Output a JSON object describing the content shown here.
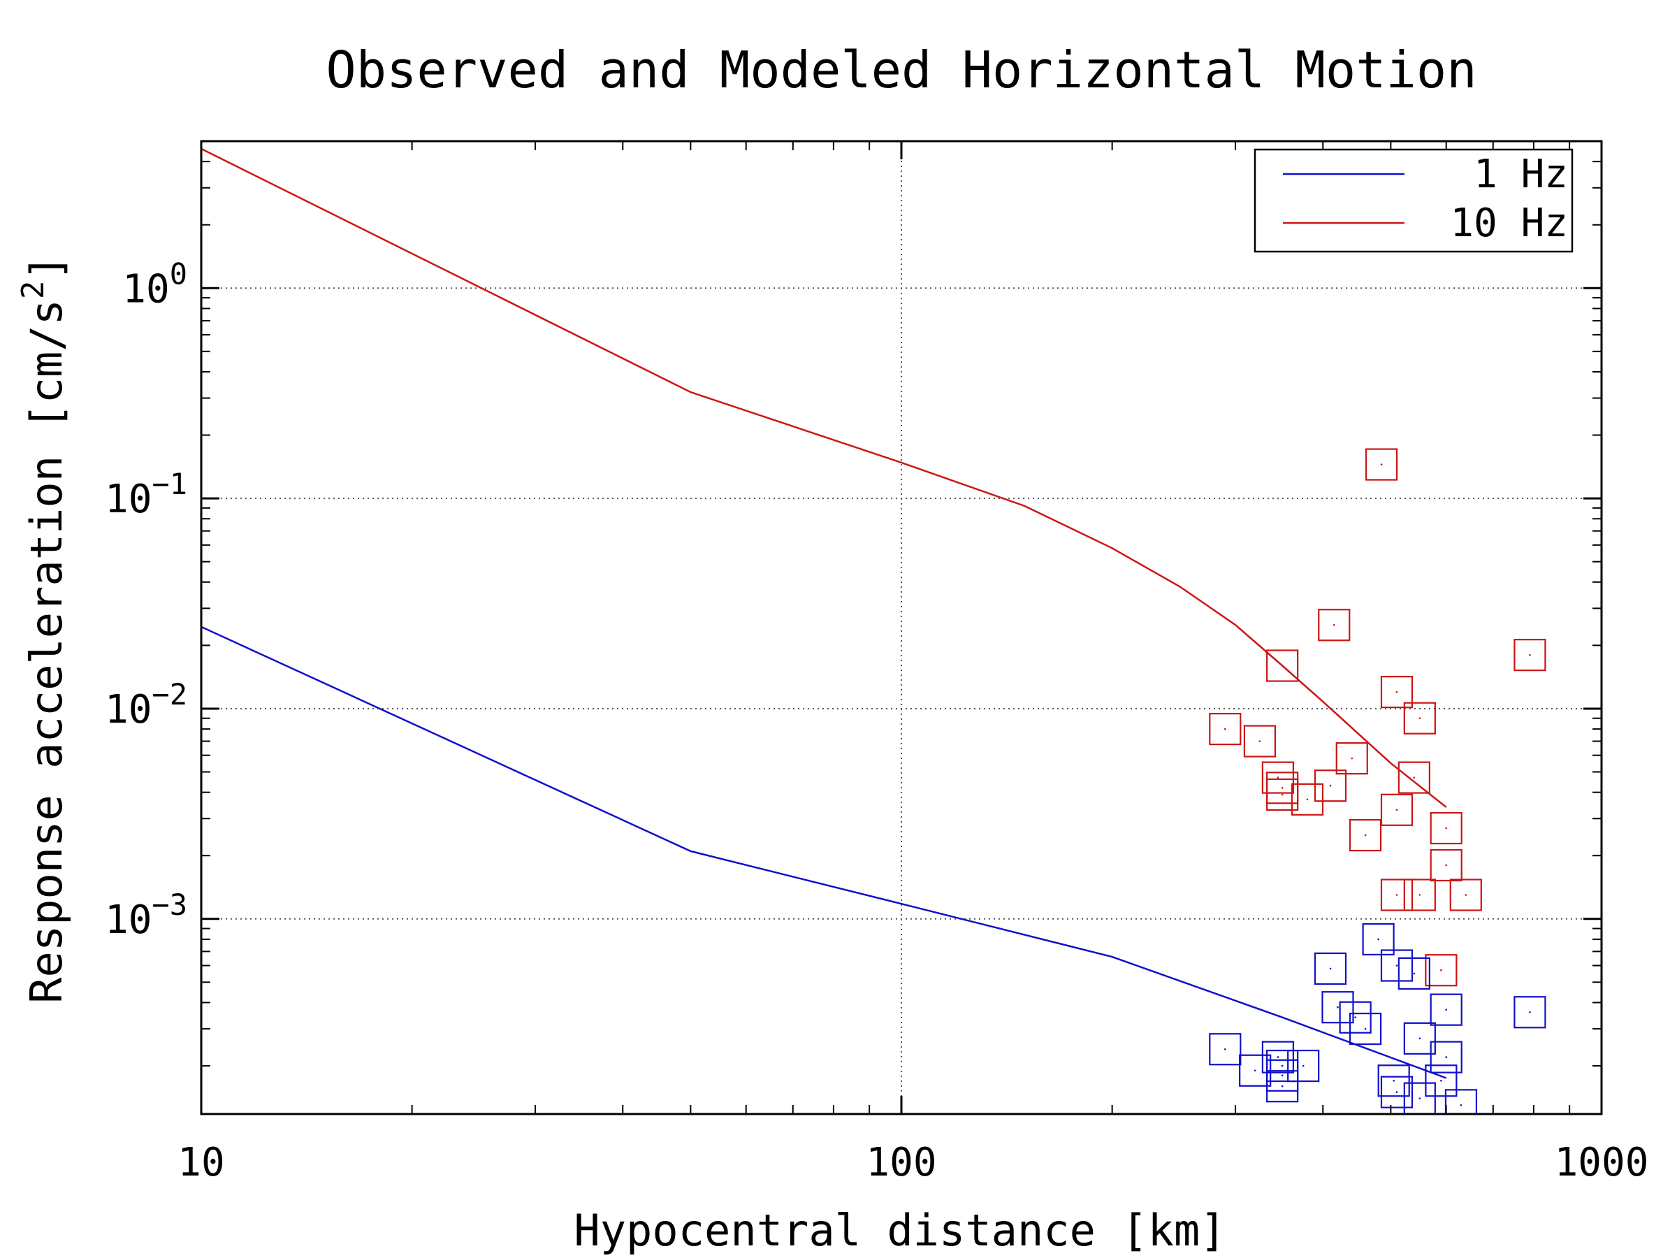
{
  "chart_data": {
    "type": "scatter",
    "title": "Observed and Modeled Horizontal Motion",
    "xlabel": "Hypocentral distance [km]",
    "ylabel": "Response acceleration [cm/s",
    "ylabel_sup": "2",
    "ylabel_end": "]",
    "x_scale": "log",
    "y_scale": "log",
    "xlim": [
      10,
      1000
    ],
    "ylim": [
      0.000118,
      5.0
    ],
    "grid": true,
    "legend_position": "top-right",
    "x_ticks": [
      {
        "value": 10,
        "label": "10"
      },
      {
        "value": 100,
        "label": "100"
      },
      {
        "value": 1000,
        "label": "1000"
      }
    ],
    "y_ticks": [
      {
        "value": 1,
        "base": "10",
        "exp": "0"
      },
      {
        "value": 0.1,
        "base": "10",
        "exp": "−1"
      },
      {
        "value": 0.01,
        "base": "10",
        "exp": "−2"
      },
      {
        "value": 0.001,
        "base": "10",
        "exp": "−3"
      }
    ],
    "series": [
      {
        "name": "1 Hz",
        "color": "#1010cc",
        "kind": "line",
        "points": [
          [
            10,
            0.0245
          ],
          [
            50,
            0.0021
          ],
          [
            100,
            0.00118
          ],
          [
            200,
            0.00066
          ],
          [
            350,
            0.00034
          ],
          [
            600,
            0.000175
          ]
        ]
      },
      {
        "name": "10 Hz",
        "color": "#cc1515",
        "kind": "line",
        "points": [
          [
            10,
            4.6
          ],
          [
            50,
            0.32
          ],
          [
            100,
            0.148
          ],
          [
            150,
            0.092
          ],
          [
            200,
            0.058
          ],
          [
            250,
            0.038
          ],
          [
            300,
            0.025
          ],
          [
            350,
            0.016
          ],
          [
            400,
            0.0108
          ],
          [
            500,
            0.0055
          ],
          [
            600,
            0.0034
          ]
        ]
      },
      {
        "name": "",
        "color": "#cc1515",
        "kind": "markers",
        "marker": "square",
        "points": [
          [
            485,
            0.145
          ],
          [
            415,
            0.025
          ],
          [
            350,
            0.016
          ],
          [
            790,
            0.018
          ],
          [
            510,
            0.012
          ],
          [
            550,
            0.009
          ],
          [
            290,
            0.008
          ],
          [
            325,
            0.007
          ],
          [
            440,
            0.0058
          ],
          [
            345,
            0.0047
          ],
          [
            350,
            0.0042
          ],
          [
            410,
            0.0043
          ],
          [
            350,
            0.0039
          ],
          [
            380,
            0.0037
          ],
          [
            540,
            0.0047
          ],
          [
            510,
            0.0033
          ],
          [
            600,
            0.0027
          ],
          [
            460,
            0.0025
          ],
          [
            600,
            0.0018
          ],
          [
            510,
            0.0013
          ],
          [
            550,
            0.0013
          ],
          [
            640,
            0.0013
          ],
          [
            590,
            0.00057
          ]
        ]
      },
      {
        "name": "",
        "color": "#1010cc",
        "kind": "markers",
        "marker": "square",
        "points": [
          [
            480,
            0.0008
          ],
          [
            410,
            0.00058
          ],
          [
            510,
            0.0006
          ],
          [
            540,
            0.00055
          ],
          [
            420,
            0.00038
          ],
          [
            445,
            0.00034
          ],
          [
            460,
            0.0003
          ],
          [
            600,
            0.00037
          ],
          [
            790,
            0.00036
          ],
          [
            550,
            0.00027
          ],
          [
            290,
            0.00024
          ],
          [
            345,
            0.00022
          ],
          [
            600,
            0.00022
          ],
          [
            350,
            0.0002
          ],
          [
            375,
            0.0002
          ],
          [
            320,
            0.00019
          ],
          [
            350,
            0.00018
          ],
          [
            505,
            0.00017
          ],
          [
            590,
            0.00017
          ],
          [
            350,
            0.00016
          ],
          [
            510,
            0.00015
          ],
          [
            550,
            0.00014
          ],
          [
            630,
            0.00013
          ]
        ]
      }
    ]
  }
}
